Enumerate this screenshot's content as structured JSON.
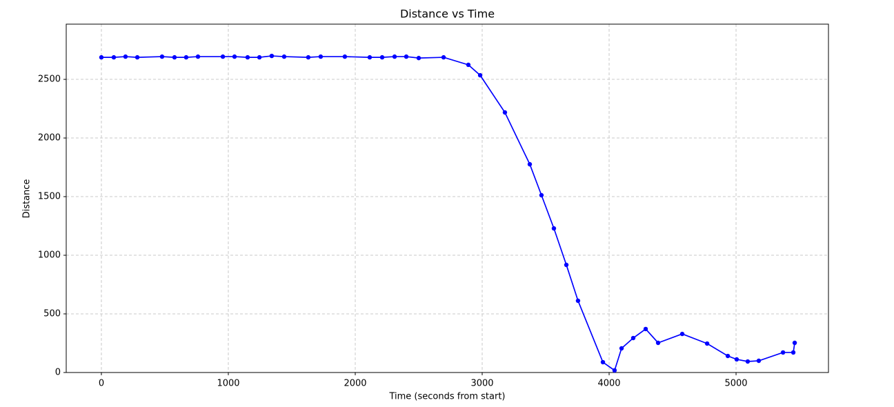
{
  "chart_data": {
    "type": "line",
    "title": "Distance vs Time",
    "x_label": "Time (seconds from start)",
    "y_label": "Distance",
    "grid": true,
    "xlim": [
      -277,
      5728
    ],
    "ylim": [
      0,
      2971
    ],
    "xticks": [
      0,
      1000,
      2000,
      3000,
      4000,
      5000
    ],
    "yticks": [
      0,
      500,
      1000,
      1500,
      2000,
      2500
    ],
    "series": [
      {
        "name": "Distance",
        "color": "#0000ff",
        "x": [
          0,
          98,
          190,
          283,
          478,
          576,
          668,
          761,
          957,
          1049,
          1152,
          1245,
          1342,
          1440,
          1630,
          1728,
          1918,
          2114,
          2212,
          2310,
          2402,
          2500,
          2696,
          2891,
          2984,
          3179,
          3375,
          3467,
          3565,
          3663,
          3755,
          3951,
          4043,
          4098,
          4190,
          4288,
          4386,
          4576,
          4772,
          4935,
          5005,
          5092,
          5179,
          5370,
          5451,
          5462
        ],
        "values": [
          2688,
          2688,
          2694,
          2688,
          2694,
          2688,
          2688,
          2694,
          2694,
          2694,
          2688,
          2688,
          2700,
          2694,
          2688,
          2694,
          2694,
          2688,
          2688,
          2694,
          2694,
          2682,
          2688,
          2624,
          2535,
          2218,
          1776,
          1512,
          1229,
          918,
          612,
          88,
          18,
          206,
          294,
          371,
          253,
          329,
          247,
          141,
          112,
          94,
          100,
          171,
          171,
          253
        ]
      }
    ]
  }
}
